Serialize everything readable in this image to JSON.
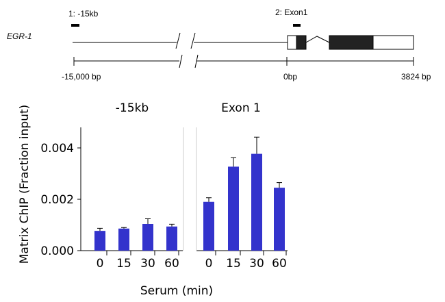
{
  "gene_map": {
    "gene_name": "EGR-1",
    "region1_label": "1: -15kb",
    "region2_label": "2: Exon1",
    "scale_left": "-15,000  bp",
    "scale_mid": "0bp",
    "scale_right": "3824 bp"
  },
  "chart_data": {
    "type": "bar",
    "ylabel": "Matrix ChIP (Fraction input)",
    "xlabel": "Serum (min)",
    "ylim": [
      0,
      0.0048
    ],
    "yticks": [
      "0.000",
      "0.002",
      "0.004"
    ],
    "grid": false,
    "bar_color": "#3333cc",
    "panels": [
      {
        "title": "-15kb",
        "categories": [
          "0",
          "15",
          "30",
          "60"
        ],
        "values": [
          0.00077,
          0.00086,
          0.00104,
          0.00094
        ],
        "errors": [
          0.0001,
          4e-05,
          0.0002,
          9e-05
        ]
      },
      {
        "title": "Exon 1",
        "categories": [
          "0",
          "15",
          "30",
          "60"
        ],
        "values": [
          0.0019,
          0.00327,
          0.00377,
          0.00245
        ],
        "errors": [
          0.00016,
          0.00035,
          0.00065,
          0.0002
        ]
      }
    ]
  }
}
